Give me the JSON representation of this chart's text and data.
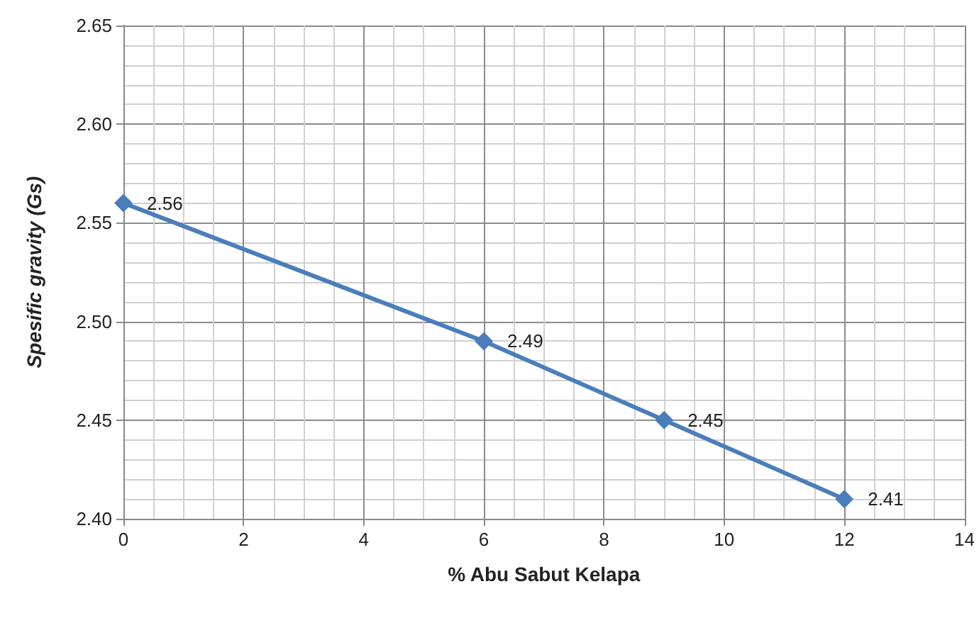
{
  "chart_data": {
    "type": "line",
    "xlabel": "% Abu Sabut Kelapa",
    "ylabel": "Spesific gravity (Gs)",
    "x": [
      0,
      6,
      9,
      12
    ],
    "series": [
      {
        "color": "#4a7ebb",
        "values": [
          2.56,
          2.49,
          2.45,
          2.41
        ]
      }
    ],
    "xlim": [
      0,
      14
    ],
    "xticks": [
      0,
      2,
      4,
      6,
      8,
      10,
      12,
      14
    ],
    "ylim": [
      2.4,
      2.65
    ],
    "yticks": [
      {
        "value": 2.4,
        "label": "2.40"
      },
      {
        "value": 2.45,
        "label": "2.45"
      },
      {
        "value": 2.5,
        "label": "2.50"
      },
      {
        "value": 2.55,
        "label": "2.55"
      },
      {
        "value": 2.6,
        "label": "2.60"
      },
      {
        "value": 2.65,
        "label": "2.65"
      }
    ],
    "grid": true,
    "marker": "diamond",
    "line_style": "solid",
    "data_labels": true
  }
}
